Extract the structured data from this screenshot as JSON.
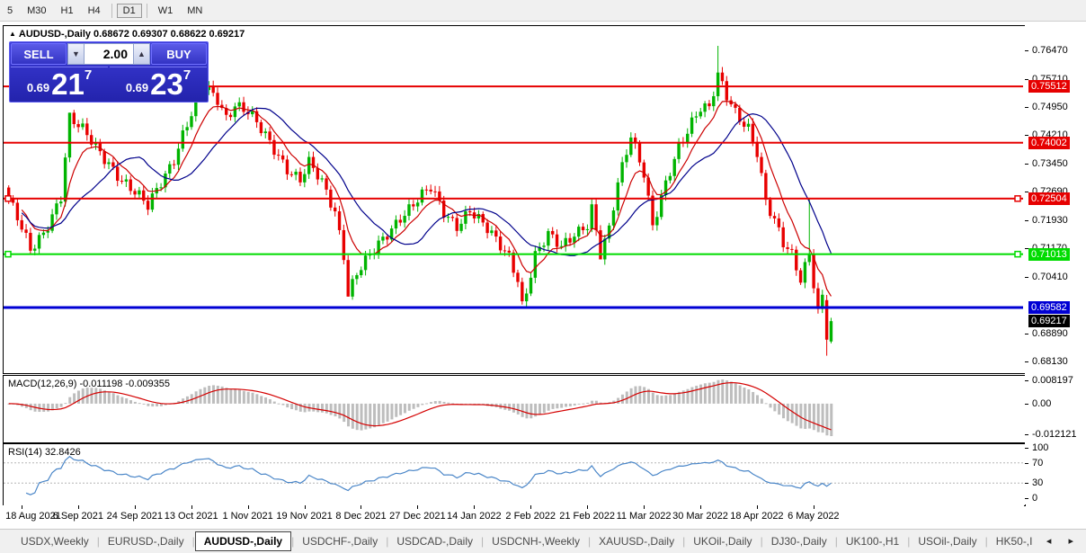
{
  "toolbar": {
    "timeframes": [
      {
        "label": "5",
        "active": false
      },
      {
        "label": "M30",
        "active": false
      },
      {
        "label": "H1",
        "active": false
      },
      {
        "label": "H4",
        "active": false
      },
      {
        "label": "D1",
        "active": true
      },
      {
        "label": "W1",
        "active": false
      },
      {
        "label": "MN",
        "active": false
      }
    ]
  },
  "chart_header": {
    "collapse_arrow": "▲",
    "title": "AUDUSD-,Daily  0.68672 0.69307 0.68622 0.69217"
  },
  "trade_panel": {
    "sell_label": "SELL",
    "buy_label": "BUY",
    "volume": "2.00",
    "down_arrow": "▼",
    "up_arrow": "▲",
    "sell_price": {
      "prefix": "0.69",
      "big": "21",
      "sup": "7"
    },
    "buy_price": {
      "prefix": "0.69",
      "big": "23",
      "sup": "7"
    }
  },
  "chart_data": {
    "type": "candlestick",
    "symbol": "AUDUSD-",
    "period": "Daily",
    "last_bar_ohlc": {
      "open": 0.68672,
      "high": 0.69307,
      "low": 0.68622,
      "close": 0.69217
    },
    "n_candles": 190,
    "ylim": [
      0.6787,
      0.7713
    ],
    "y_ticks": [
      0.7647,
      0.7571,
      0.7495,
      0.7421,
      0.7345,
      0.7269,
      0.7193,
      0.7117,
      0.7041,
      0.6889,
      0.6813
    ],
    "price_keypoints": [
      [
        0,
        0.725
      ],
      [
        2,
        0.7195
      ],
      [
        5,
        0.7108
      ],
      [
        8,
        0.716
      ],
      [
        12,
        0.726
      ],
      [
        14,
        0.7465
      ],
      [
        17,
        0.743
      ],
      [
        20,
        0.739
      ],
      [
        23,
        0.735
      ],
      [
        26,
        0.73
      ],
      [
        29,
        0.7262
      ],
      [
        32,
        0.7228
      ],
      [
        35,
        0.73
      ],
      [
        38,
        0.736
      ],
      [
        40,
        0.742
      ],
      [
        43,
        0.75
      ],
      [
        45,
        0.7548
      ],
      [
        48,
        0.752
      ],
      [
        50,
        0.7472
      ],
      [
        52,
        0.7505
      ],
      [
        55,
        0.748
      ],
      [
        58,
        0.7432
      ],
      [
        61,
        0.7385
      ],
      [
        64,
        0.7335
      ],
      [
        67,
        0.73
      ],
      [
        69,
        0.7342
      ],
      [
        72,
        0.729
      ],
      [
        75,
        0.7218
      ],
      [
        77,
        0.7105
      ],
      [
        78,
        0.6998
      ],
      [
        80,
        0.7052
      ],
      [
        83,
        0.7092
      ],
      [
        86,
        0.7138
      ],
      [
        90,
        0.7205
      ],
      [
        94,
        0.7248
      ],
      [
        97,
        0.7275
      ],
      [
        100,
        0.7212
      ],
      [
        103,
        0.7182
      ],
      [
        106,
        0.7222
      ],
      [
        109,
        0.7178
      ],
      [
        112,
        0.7135
      ],
      [
        115,
        0.7098
      ],
      [
        117,
        0.704
      ],
      [
        118,
        0.6968
      ],
      [
        119,
        0.7005
      ],
      [
        121,
        0.7095
      ],
      [
        124,
        0.7148
      ],
      [
        127,
        0.7122
      ],
      [
        130,
        0.7162
      ],
      [
        133,
        0.7182
      ],
      [
        134,
        0.7222
      ],
      [
        136,
        0.7094
      ],
      [
        138,
        0.7162
      ],
      [
        140,
        0.7292
      ],
      [
        143,
        0.7428
      ],
      [
        146,
        0.7322
      ],
      [
        148,
        0.7172
      ],
      [
        151,
        0.7282
      ],
      [
        154,
        0.739
      ],
      [
        157,
        0.7462
      ],
      [
        159,
        0.75
      ],
      [
        161,
        0.7492
      ],
      [
        163,
        0.7575
      ],
      [
        165,
        0.752
      ],
      [
        167,
        0.748
      ],
      [
        170,
        0.7445
      ],
      [
        172,
        0.738
      ],
      [
        174,
        0.7242
      ],
      [
        176,
        0.7185
      ],
      [
        178,
        0.7125
      ],
      [
        180,
        0.7098
      ],
      [
        182,
        0.7038
      ],
      [
        184,
        0.711
      ],
      [
        186,
        0.6948
      ],
      [
        187,
        0.6988
      ],
      [
        188,
        0.693
      ],
      [
        189,
        0.69217
      ]
    ],
    "candle_overrides": [
      {
        "i": 14,
        "h": 0.7478
      },
      {
        "i": 45,
        "h": 0.7556
      },
      {
        "i": 78,
        "l": 0.6993
      },
      {
        "i": 118,
        "l": 0.6966
      },
      {
        "i": 136,
        "l": 0.7094
      },
      {
        "i": 148,
        "l": 0.7165
      },
      {
        "i": 163,
        "h": 0.766
      },
      {
        "i": 184,
        "h": 0.7252
      },
      {
        "i": 188,
        "o": 0.6978,
        "h": 0.6992,
        "l": 0.6829,
        "c": 0.6872
      },
      {
        "i": 189,
        "o": 0.68672,
        "h": 0.69307,
        "l": 0.68622,
        "c": 0.69217
      }
    ],
    "moving_averages": [
      {
        "name": "fast-ma",
        "type": "ema",
        "period": 8,
        "color": "#cc0000"
      },
      {
        "name": "slow-ma",
        "type": "sma",
        "period": 18,
        "color": "#00008b"
      }
    ],
    "hlines": [
      {
        "price": 0.75512,
        "label": "0.75512",
        "color": "#e60000",
        "thickness": 2,
        "handles": false
      },
      {
        "price": 0.74002,
        "label": "0.74002",
        "color": "#e60000",
        "thickness": 2,
        "handles": false
      },
      {
        "price": 0.72504,
        "label": "0.72504",
        "color": "#e60000",
        "thickness": 2,
        "handles": true
      },
      {
        "price": 0.71013,
        "label": "0.71013",
        "color": "#00dc00",
        "thickness": 2,
        "handles": true
      },
      {
        "price": 0.69582,
        "label": "0.69582",
        "color": "#0000d4",
        "thickness": 3,
        "handles": false
      }
    ],
    "current_price_label": {
      "text": "0.69217",
      "bg": "#000000"
    },
    "colors": {
      "bull": "#00b400",
      "bear": "#e80000",
      "wick_bull": "#00b400",
      "wick_bear": "#e80000"
    },
    "x_tick_candle_indices": [
      3,
      16,
      29,
      42,
      55,
      68,
      81,
      94,
      107,
      120,
      133,
      146,
      159,
      172,
      185
    ]
  },
  "macd": {
    "label": "MACD(12,26,9) -0.011198 -0.009355",
    "params": {
      "fast": 12,
      "slow": 26,
      "signal": 9
    },
    "values_shown": {
      "macd": -0.011198,
      "signal": -0.009355
    },
    "axis_labels": [
      "0.008197",
      "0.00",
      "-0.012121"
    ],
    "hist_color": "#bdbdbd",
    "signal_color": "#d40000"
  },
  "rsi": {
    "label": "RSI(14) 32.8426",
    "period": 14,
    "value_shown": 32.8426,
    "axis_labels": [
      "100",
      "70",
      "30",
      "0"
    ],
    "levels": [
      70,
      30
    ],
    "line_color": "#4a86c8"
  },
  "x_axis_dates": [
    "18 Aug 2021",
    "6 Sep 2021",
    "24 Sep 2021",
    "13 Oct 2021",
    "1 Nov 2021",
    "19 Nov 2021",
    "8 Dec 2021",
    "27 Dec 2021",
    "14 Jan 2022",
    "2 Feb 2022",
    "21 Feb 2022",
    "11 Mar 2022",
    "30 Mar 2022",
    "18 Apr 2022",
    "6 May 2022"
  ],
  "tabs": {
    "items": [
      "USDX,Weekly",
      "EURUSD-,Daily",
      "AUDUSD-,Daily",
      "USDCHF-,Daily",
      "USDCAD-,Daily",
      "USDCNH-,Weekly",
      "XAUUSD-,Daily",
      "UKOil-,Daily",
      "DJ30-,Daily",
      "UK100-,H1",
      "USOil-,Daily",
      "HK50-,I"
    ],
    "active_index": 2,
    "scroll_left": "◂",
    "scroll_right": "▸"
  }
}
